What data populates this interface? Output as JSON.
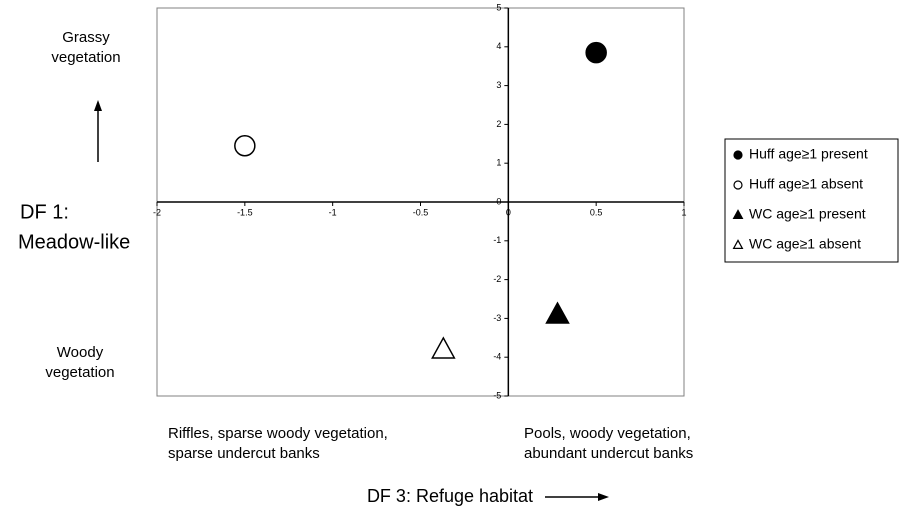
{
  "chart_data": {
    "type": "scatter",
    "xlabel": "DF 3: Refuge habitat",
    "ylabel": [
      "DF 1:",
      "Meadow-like"
    ],
    "annotations": [
      {
        "text": [
          "Grassy",
          "vegetation"
        ]
      },
      {
        "text": [
          "Woody",
          "vegetation"
        ]
      },
      {
        "text": [
          "Riffles, sparse woody vegetation,",
          "sparse undercut banks"
        ]
      },
      {
        "text": [
          "Pools, woody vegetation,",
          "abundant undercut banks"
        ]
      }
    ],
    "xlim": [
      -2,
      1
    ],
    "ylim": [
      -5,
      5
    ],
    "xticks": [
      -2,
      -1.5,
      -1,
      -0.5,
      0,
      0.5,
      1
    ],
    "yticks": [
      -5,
      -4,
      -3,
      -2,
      -1,
      0,
      1,
      2,
      3,
      4,
      5
    ],
    "legend": "right",
    "series": [
      {
        "name": "Huff age≥1 present",
        "color": "#000000",
        "marker": "circle",
        "filled": true,
        "x": [
          0.5
        ],
        "values": [
          3.85
        ]
      },
      {
        "name": "Huff age≥1 absent",
        "color": "#000000",
        "marker": "circle",
        "filled": false,
        "x": [
          -1.5
        ],
        "values": [
          1.45
        ]
      },
      {
        "name": "WC age≥1 present",
        "color": "#000000",
        "marker": "triangle",
        "filled": true,
        "x": [
          0.28
        ],
        "values": [
          -2.9
        ]
      },
      {
        "name": "WC age≥1 absent",
        "color": "#000000",
        "marker": "triangle",
        "filled": false,
        "x": [
          -0.37
        ],
        "values": [
          -3.8
        ]
      }
    ]
  }
}
